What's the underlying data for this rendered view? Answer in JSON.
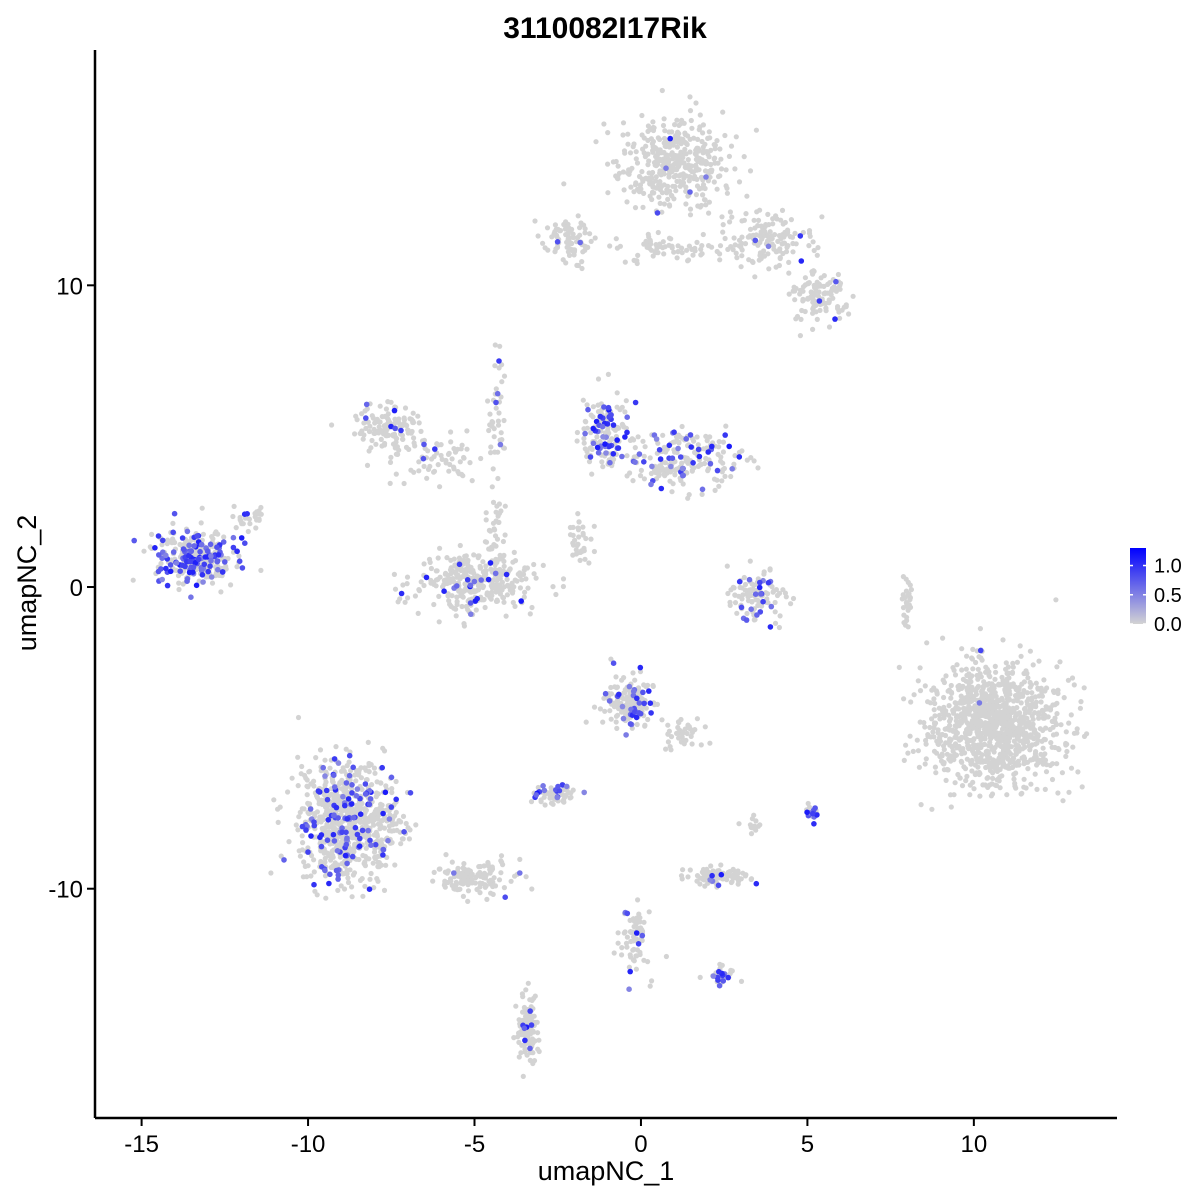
{
  "chart_data": {
    "type": "scatter",
    "title": "3110082I17Rik",
    "xlabel": "umapNC_1",
    "ylabel": "umapNC_2",
    "xlim": [
      -16.4,
      14.3
    ],
    "ylim": [
      -17.6,
      17.8
    ],
    "x_ticks": [
      -15,
      -10,
      -5,
      0,
      5,
      10
    ],
    "x_tick_labels": [
      "-15",
      "-10",
      "-5",
      "0",
      "5",
      "10"
    ],
    "y_ticks": [
      -10,
      0,
      10
    ],
    "y_tick_labels": [
      "-10",
      "0",
      "10"
    ],
    "grid": false,
    "color_scale": {
      "low": "#d3d3d3",
      "high": "#0000ff",
      "min": 0,
      "max": 1.3
    },
    "legend": {
      "placement": "right",
      "ticks": [
        1.0,
        0.5,
        0.0
      ],
      "labels": [
        "1.0",
        "0.5",
        "0.0"
      ]
    },
    "clusters": [
      {
        "cx": 1.0,
        "cy": 14.0,
        "sx": 1.1,
        "sy": 1.0,
        "n": 420,
        "expr_rate": 0.01
      },
      {
        "cx": 3.8,
        "cy": 11.5,
        "sx": 0.9,
        "sy": 0.7,
        "n": 140,
        "expr_rate": 0.01
      },
      {
        "cx": 5.3,
        "cy": 9.6,
        "sx": 0.6,
        "sy": 0.5,
        "n": 110,
        "expr_rate": 0.03
      },
      {
        "cx": -2.2,
        "cy": 11.5,
        "sx": 0.5,
        "sy": 0.5,
        "n": 80,
        "expr_rate": 0.02
      },
      {
        "cx": 0.8,
        "cy": 11.2,
        "sx": 1.1,
        "sy": 0.3,
        "n": 60,
        "expr_rate": 0.02
      },
      {
        "cx": -7.6,
        "cy": 5.3,
        "sx": 0.6,
        "sy": 0.6,
        "n": 130,
        "expr_rate": 0.05
      },
      {
        "cx": -6.0,
        "cy": 4.2,
        "sx": 0.9,
        "sy": 0.5,
        "n": 60,
        "expr_rate": 0.1
      },
      {
        "cx": -5.0,
        "cy": 0.2,
        "sx": 1.2,
        "sy": 0.6,
        "n": 320,
        "expr_rate": 0.05
      },
      {
        "cx": -1.1,
        "cy": 5.2,
        "sx": 0.5,
        "sy": 0.9,
        "n": 150,
        "expr_rate": 0.3
      },
      {
        "cx": 1.3,
        "cy": 4.2,
        "sx": 1.2,
        "sy": 0.6,
        "n": 220,
        "expr_rate": 0.18
      },
      {
        "cx": -13.4,
        "cy": 1.0,
        "sx": 0.8,
        "sy": 0.6,
        "n": 330,
        "expr_rate": 0.35
      },
      {
        "cx": -11.8,
        "cy": 2.3,
        "sx": 0.3,
        "sy": 0.3,
        "n": 25,
        "expr_rate": 0.05
      },
      {
        "cx": 3.5,
        "cy": -0.3,
        "sx": 0.6,
        "sy": 0.6,
        "n": 110,
        "expr_rate": 0.15
      },
      {
        "cx": 8.0,
        "cy": -0.3,
        "sx": 0.1,
        "sy": 0.5,
        "n": 30,
        "expr_rate": 0.0
      },
      {
        "cx": 10.6,
        "cy": -4.6,
        "sx": 1.3,
        "sy": 1.3,
        "n": 1100,
        "expr_rate": 0.005
      },
      {
        "cx": -0.4,
        "cy": -3.8,
        "sx": 0.5,
        "sy": 0.6,
        "n": 180,
        "expr_rate": 0.12
      },
      {
        "cx": 1.3,
        "cy": -4.9,
        "sx": 0.4,
        "sy": 0.4,
        "n": 40,
        "expr_rate": 0.04
      },
      {
        "cx": -8.8,
        "cy": -7.8,
        "sx": 1.0,
        "sy": 1.3,
        "n": 780,
        "expr_rate": 0.15
      },
      {
        "cx": -5.0,
        "cy": -9.6,
        "sx": 0.8,
        "sy": 0.4,
        "n": 130,
        "expr_rate": 0.05
      },
      {
        "cx": -2.6,
        "cy": -6.9,
        "sx": 0.4,
        "sy": 0.2,
        "n": 60,
        "expr_rate": 0.2
      },
      {
        "cx": 2.3,
        "cy": -9.6,
        "sx": 0.6,
        "sy": 0.2,
        "n": 90,
        "expr_rate": 0.1
      },
      {
        "cx": 5.1,
        "cy": -7.5,
        "sx": 0.15,
        "sy": 0.2,
        "n": 20,
        "expr_rate": 0.5
      },
      {
        "cx": 3.4,
        "cy": -7.9,
        "sx": 0.2,
        "sy": 0.2,
        "n": 12,
        "expr_rate": 0.0
      },
      {
        "cx": -0.2,
        "cy": -11.7,
        "sx": 0.3,
        "sy": 0.8,
        "n": 70,
        "expr_rate": 0.12
      },
      {
        "cx": 2.4,
        "cy": -12.8,
        "sx": 0.3,
        "sy": 0.2,
        "n": 30,
        "expr_rate": 0.3
      },
      {
        "cx": -3.4,
        "cy": -14.7,
        "sx": 0.2,
        "sy": 0.8,
        "n": 110,
        "expr_rate": 0.06
      },
      {
        "cx": -4.3,
        "cy": 5.8,
        "sx": 0.2,
        "sy": 1.2,
        "n": 40,
        "expr_rate": 0.08
      },
      {
        "cx": -4.4,
        "cy": 1.6,
        "sx": 0.2,
        "sy": 1.2,
        "n": 50,
        "expr_rate": 0.0
      },
      {
        "cx": -1.8,
        "cy": 1.5,
        "sx": 0.3,
        "sy": 0.8,
        "n": 35,
        "expr_rate": 0.0
      }
    ]
  }
}
